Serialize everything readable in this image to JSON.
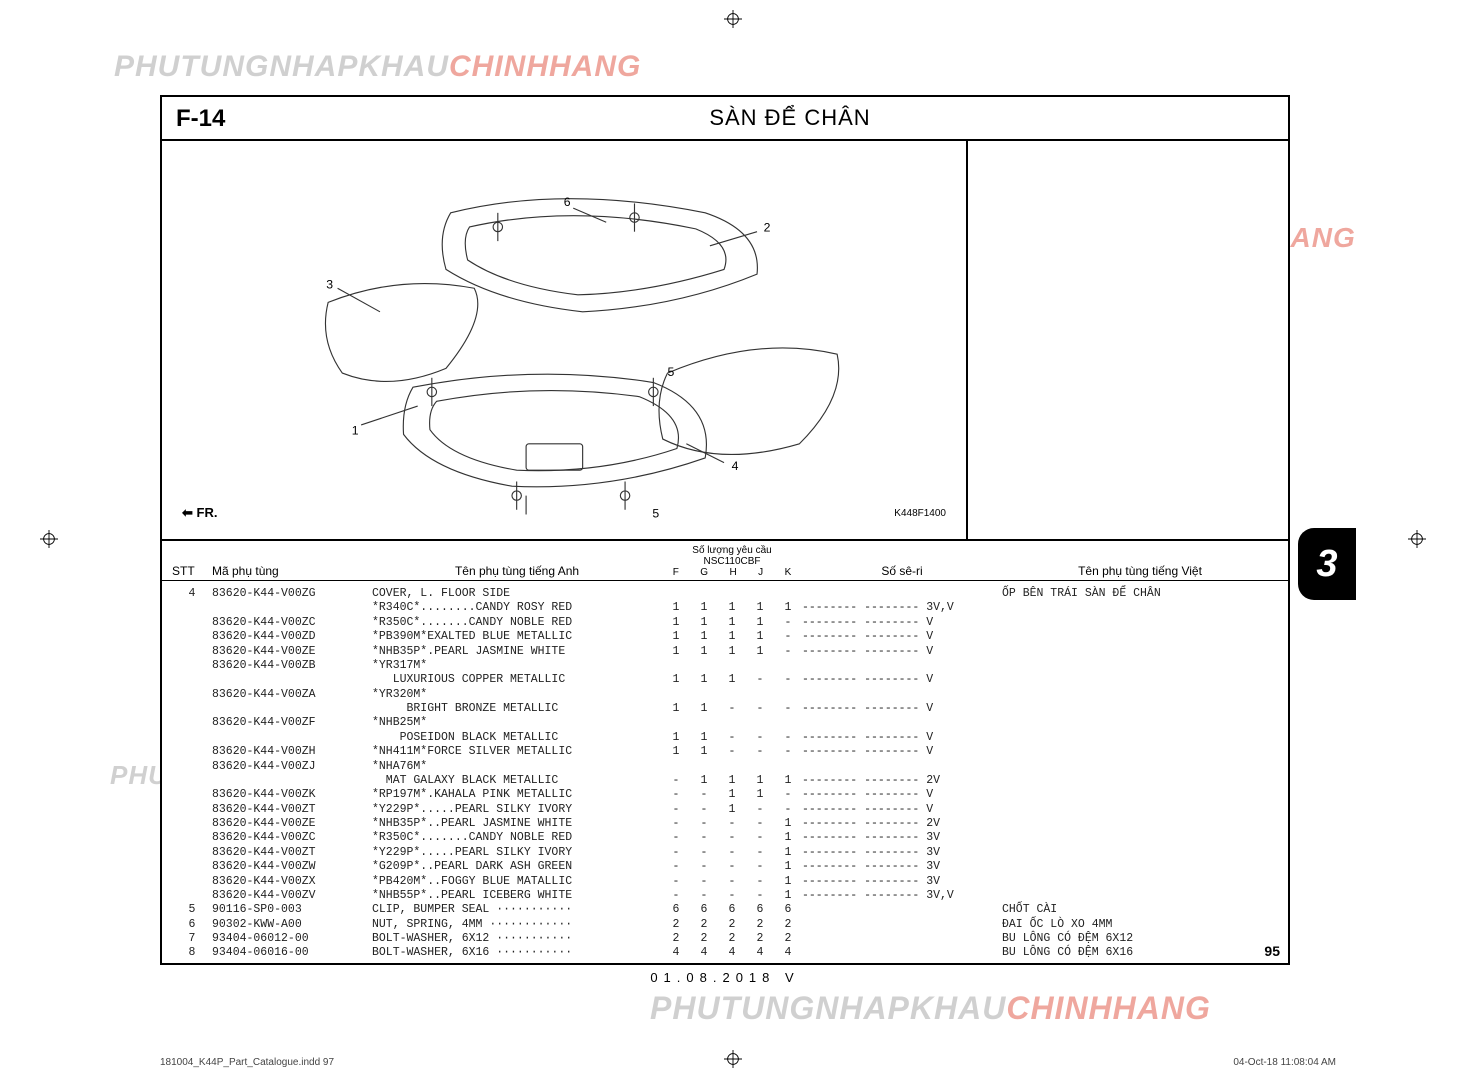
{
  "watermark": {
    "part1": "PHUTUNGNHAPKHAU",
    "part2": "CHINHHANG"
  },
  "header": {
    "code": "F-14",
    "title": "SÀN ĐỂ CHÂN"
  },
  "diagram": {
    "fr_label": "FR.",
    "ref_code": "K448F1400",
    "callouts": [
      "1",
      "2",
      "3",
      "4",
      "5",
      "6"
    ]
  },
  "columns": {
    "stt": "STT",
    "ma": "Mã phụ tùng",
    "ten_anh": "Tên phụ tùng tiếng Anh",
    "qty_top": "Số lượng yêu cầu",
    "qty_model": "NSC110CBF",
    "qty_cols": [
      "F",
      "G",
      "H",
      "J",
      "K"
    ],
    "seri": "Số sê-ri",
    "ten_viet": "Tên phụ tùng tiếng Việt"
  },
  "rows": [
    {
      "stt": "4",
      "ma": "83620-K44-V00ZG",
      "ten": "COVER, L. FLOOR SIDE",
      "q": [
        "",
        "",
        "",
        "",
        ""
      ],
      "seri": "",
      "viet": "ỐP BÊN TRÁI SÀN ĐỂ CHÂN"
    },
    {
      "stt": "",
      "ma": "",
      "ten": "*R340C*........CANDY ROSY RED",
      "q": [
        "1",
        "1",
        "1",
        "1",
        "1"
      ],
      "seri": "-------- -------- 3V,V",
      "viet": ""
    },
    {
      "stt": "",
      "ma": "83620-K44-V00ZC",
      "ten": "*R350C*.......CANDY NOBLE RED",
      "q": [
        "1",
        "1",
        "1",
        "1",
        "-"
      ],
      "seri": "-------- -------- V",
      "viet": ""
    },
    {
      "stt": "",
      "ma": "83620-K44-V00ZD",
      "ten": "*PB390M*EXALTED BLUE METALLIC",
      "q": [
        "1",
        "1",
        "1",
        "1",
        "-"
      ],
      "seri": "-------- -------- V",
      "viet": ""
    },
    {
      "stt": "",
      "ma": "83620-K44-V00ZE",
      "ten": "*NHB35P*.PEARL JASMINE WHITE",
      "q": [
        "1",
        "1",
        "1",
        "1",
        "-"
      ],
      "seri": "-------- -------- V",
      "viet": ""
    },
    {
      "stt": "",
      "ma": "83620-K44-V00ZB",
      "ten": "*YR317M*",
      "q": [
        "",
        "",
        "",
        "",
        ""
      ],
      "seri": "",
      "viet": ""
    },
    {
      "stt": "",
      "ma": "",
      "ten": "   LUXURIOUS COPPER METALLIC",
      "q": [
        "1",
        "1",
        "1",
        "-",
        "-"
      ],
      "seri": "-------- -------- V",
      "viet": ""
    },
    {
      "stt": "",
      "ma": "83620-K44-V00ZA",
      "ten": "*YR320M*",
      "q": [
        "",
        "",
        "",
        "",
        ""
      ],
      "seri": "",
      "viet": ""
    },
    {
      "stt": "",
      "ma": "",
      "ten": "     BRIGHT BRONZE METALLIC",
      "q": [
        "1",
        "1",
        "-",
        "-",
        "-"
      ],
      "seri": "-------- -------- V",
      "viet": ""
    },
    {
      "stt": "",
      "ma": "83620-K44-V00ZF",
      "ten": "*NHB25M*",
      "q": [
        "",
        "",
        "",
        "",
        ""
      ],
      "seri": "",
      "viet": ""
    },
    {
      "stt": "",
      "ma": "",
      "ten": "    POSEIDON BLACK METALLIC",
      "q": [
        "1",
        "1",
        "-",
        "-",
        "-"
      ],
      "seri": "-------- -------- V",
      "viet": ""
    },
    {
      "stt": "",
      "ma": "83620-K44-V00ZH",
      "ten": "*NH411M*FORCE SILVER METALLIC",
      "q": [
        "1",
        "1",
        "-",
        "-",
        "-"
      ],
      "seri": "-------- -------- V",
      "viet": ""
    },
    {
      "stt": "",
      "ma": "83620-K44-V00ZJ",
      "ten": "*NHA76M*",
      "q": [
        "",
        "",
        "",
        "",
        ""
      ],
      "seri": "",
      "viet": ""
    },
    {
      "stt": "",
      "ma": "",
      "ten": "  MAT GALAXY BLACK METALLIC",
      "q": [
        "-",
        "1",
        "1",
        "1",
        "1"
      ],
      "seri": "-------- -------- 2V",
      "viet": ""
    },
    {
      "stt": "",
      "ma": "83620-K44-V00ZK",
      "ten": "*RP197M*.KAHALA PINK METALLIC",
      "q": [
        "-",
        "-",
        "1",
        "1",
        "-"
      ],
      "seri": "-------- -------- V",
      "viet": ""
    },
    {
      "stt": "",
      "ma": "83620-K44-V00ZT",
      "ten": "*Y229P*.....PEARL SILKY IVORY",
      "q": [
        "-",
        "-",
        "1",
        "-",
        "-"
      ],
      "seri": "-------- -------- V",
      "viet": ""
    },
    {
      "stt": "",
      "ma": "83620-K44-V00ZE",
      "ten": "*NHB35P*..PEARL JASMINE WHITE",
      "q": [
        "-",
        "-",
        "-",
        "-",
        "1"
      ],
      "seri": "-------- -------- 2V",
      "viet": ""
    },
    {
      "stt": "",
      "ma": "83620-K44-V00ZC",
      "ten": "*R350C*.......CANDY NOBLE RED",
      "q": [
        "-",
        "-",
        "-",
        "-",
        "1"
      ],
      "seri": "-------- -------- 3V",
      "viet": ""
    },
    {
      "stt": "",
      "ma": "83620-K44-V00ZT",
      "ten": "*Y229P*.....PEARL SILKY IVORY",
      "q": [
        "-",
        "-",
        "-",
        "-",
        "1"
      ],
      "seri": "-------- -------- 3V",
      "viet": ""
    },
    {
      "stt": "",
      "ma": "83620-K44-V00ZW",
      "ten": "*G209P*..PEARL DARK ASH GREEN",
      "q": [
        "-",
        "-",
        "-",
        "-",
        "1"
      ],
      "seri": "-------- -------- 3V",
      "viet": ""
    },
    {
      "stt": "",
      "ma": "83620-K44-V00ZX",
      "ten": "*PB420M*..FOGGY BLUE MATALLIC",
      "q": [
        "-",
        "-",
        "-",
        "-",
        "1"
      ],
      "seri": "-------- -------- 3V",
      "viet": ""
    },
    {
      "stt": "",
      "ma": "83620-K44-V00ZV",
      "ten": "*NHB55P*..PEARL ICEBERG WHITE",
      "q": [
        "-",
        "-",
        "-",
        "-",
        "1"
      ],
      "seri": "-------- -------- 3V,V",
      "viet": ""
    },
    {
      "stt": "5",
      "ma": "90116-SP0-003",
      "ten": "CLIP, BUMPER SEAL ···········",
      "q": [
        "6",
        "6",
        "6",
        "6",
        "6"
      ],
      "seri": "",
      "viet": "CHỐT CÀI"
    },
    {
      "stt": "",
      "ma": "",
      "ten": "",
      "q": [
        "",
        "",
        "",
        "",
        ""
      ],
      "seri": "",
      "viet": ""
    },
    {
      "stt": "6",
      "ma": "90302-KWW-A00",
      "ten": "NUT, SPRING, 4MM ············",
      "q": [
        "2",
        "2",
        "2",
        "2",
        "2"
      ],
      "seri": "",
      "viet": "ĐAI ỐC LÒ XO 4MM"
    },
    {
      "stt": "7",
      "ma": "93404-06012-00",
      "ten": "BOLT-WASHER, 6X12 ···········",
      "q": [
        "2",
        "2",
        "2",
        "2",
        "2"
      ],
      "seri": "",
      "viet": "BU LÔNG CÓ ĐỆM 6X12"
    },
    {
      "stt": "8",
      "ma": "93404-06016-00",
      "ten": "BOLT-WASHER, 6X16 ···········",
      "q": [
        "4",
        "4",
        "4",
        "4",
        "4"
      ],
      "seri": "",
      "viet": "BU LÔNG CÓ ĐỆM 6X16"
    }
  ],
  "page_number": "95",
  "footer_date": "01.08.2018    V",
  "side_tab": "3",
  "indd": {
    "left": "181004_K44P_Part_Catalogue.indd   97",
    "right": "04-Oct-18   11:08:04 AM"
  }
}
